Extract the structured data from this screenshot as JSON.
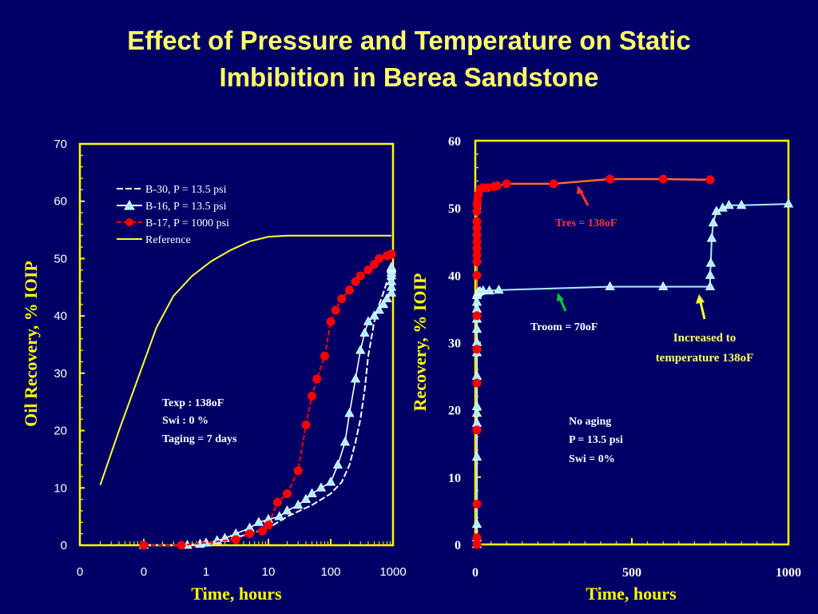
{
  "slide": {
    "title_line1": "Effect of Pressure and Temperature on Static",
    "title_line2": "Imbibition in Berea Sandstone"
  },
  "colors": {
    "background": "#000066",
    "frame": "#ffff00",
    "title": "#ffff66",
    "b30": "#ffffff",
    "b16_fill": "#aaf0ff",
    "b17": "#ff0000",
    "reference": "#ffff33",
    "tres_curve": "#ff6633",
    "troom_curve": "#aaf0ff"
  },
  "chart_data": [
    {
      "type": "line",
      "xscale": "log",
      "xlabel": "Time, hours",
      "ylabel": "Oil Recovery, % IOIP",
      "ylim": [
        0,
        70
      ],
      "yticks": [
        0,
        10,
        20,
        30,
        40,
        50,
        60,
        70
      ],
      "xtick_labels": [
        "0",
        "0",
        "1",
        "10",
        "100",
        "1000"
      ],
      "legend_position": "top-left",
      "series": [
        {
          "name": "B-30, P = 13.5 psi",
          "marker": "dash",
          "x": [
            0.01,
            0.04,
            0.1,
            0.2,
            0.5,
            1,
            2,
            5,
            10,
            15,
            20,
            25,
            30,
            35,
            40,
            50,
            60,
            70,
            80,
            100,
            150,
            200,
            300,
            400,
            500
          ],
          "y": [
            0,
            0,
            0.3,
            0.8,
            2,
            3,
            5,
            7,
            9,
            11,
            14,
            18,
            22,
            27,
            33,
            39,
            42,
            44,
            46,
            47,
            48,
            48.5,
            49,
            49,
            49
          ]
        },
        {
          "name": "B-16, P = 13.5 psi",
          "marker": "triangle",
          "x": [
            0.01,
            0.05,
            0.08,
            0.1,
            0.15,
            0.2,
            0.3,
            0.5,
            0.7,
            1,
            1.5,
            2,
            3,
            4,
            5,
            7,
            10,
            13,
            17,
            20,
            25,
            30,
            35,
            40,
            50,
            60,
            70,
            80,
            100,
            130,
            160,
            200,
            250,
            300,
            400,
            500
          ],
          "y": [
            0,
            0,
            0.2,
            0.4,
            0.8,
            1.2,
            2,
            3,
            4,
            4.5,
            5,
            6,
            7,
            8,
            9,
            10,
            11,
            14,
            18,
            23,
            29,
            34,
            37,
            39,
            40,
            41,
            42,
            43,
            44,
            45,
            46,
            47,
            47.5,
            48,
            48.3,
            48.5
          ]
        },
        {
          "name": "B-17, P = 1000 psi",
          "marker": "circle",
          "x": [
            0.01,
            0.04,
            0.3,
            0.5,
            0.8,
            1,
            1.4,
            2,
            3,
            4,
            5,
            6,
            8,
            10,
            12,
            15,
            20,
            25,
            30,
            40,
            50,
            60,
            80,
            100,
            130,
            170,
            220,
            280,
            350,
            500
          ],
          "y": [
            0,
            0,
            1,
            2,
            2.5,
            3.5,
            7.5,
            9,
            13,
            21,
            26,
            29,
            33,
            39,
            41,
            43,
            44.5,
            46,
            47,
            48,
            49,
            50,
            50.5,
            50.7,
            50.8,
            50.8,
            50.8,
            50.8,
            50.8,
            50.8
          ]
        },
        {
          "name": "Reference",
          "marker": "none",
          "x": [
            0.002,
            0.004,
            0.008,
            0.016,
            0.03,
            0.06,
            0.12,
            0.25,
            0.5,
            1,
            2,
            4,
            8,
            16,
            32,
            64,
            128,
            256,
            500
          ],
          "y": [
            10.5,
            20,
            29,
            38,
            43.5,
            47,
            49.5,
            51.5,
            53,
            53.8,
            54,
            54,
            54,
            54,
            54,
            54,
            54,
            54,
            54
          ]
        }
      ],
      "annotations": [
        "Texp : 138oF",
        "Swi   : 0 %",
        "Taging = 7 days"
      ]
    },
    {
      "type": "scatter",
      "xlabel": "Time, hours",
      "ylabel": "Recovery, % IOIP",
      "xlim": [
        0,
        1000
      ],
      "ylim": [
        0,
        60
      ],
      "xticks": [
        0,
        500,
        1000
      ],
      "yticks": [
        0,
        10,
        20,
        30,
        40,
        50,
        60
      ],
      "series": [
        {
          "marker": "circle",
          "x": [
            0,
            0,
            0,
            0,
            0,
            1,
            1,
            2,
            2,
            2,
            3,
            3,
            3,
            4,
            4,
            5,
            6,
            7,
            10,
            15,
            25,
            40,
            60,
            70,
            100,
            250,
            430,
            600,
            750
          ],
          "y": [
            0,
            1,
            6,
            17,
            24,
            29,
            34,
            40,
            42,
            43,
            44,
            45,
            46,
            47,
            48,
            49.5,
            50.5,
            51,
            52,
            52.8,
            53,
            53,
            53.2,
            53.3,
            53.6,
            53.6,
            54.3,
            54.3,
            54.2
          ]
        },
        {
          "marker": "triangle",
          "x": [
            0,
            0,
            0,
            0,
            1,
            1,
            1,
            1,
            2,
            2,
            2,
            3,
            3,
            4,
            5,
            7,
            10,
            15,
            25,
            45,
            75,
            430,
            600,
            750,
            750,
            752,
            755,
            760,
            770,
            790,
            810,
            850,
            1000
          ],
          "y": [
            0,
            1,
            3,
            13,
            18,
            19.5,
            20.5,
            25,
            28.5,
            30,
            32,
            33.5,
            35,
            36,
            37,
            37.3,
            37.5,
            37.6,
            37.7,
            37.7,
            37.8,
            38.3,
            38.3,
            38.3,
            40,
            41.8,
            45.5,
            47.8,
            49.5,
            50,
            50.4,
            50.4,
            50.6
          ]
        }
      ],
      "annotations": {
        "tres_label": "Tres = 138oF",
        "troom_label": "Troom = 70oF",
        "increased_line1": "Increased to",
        "increased_line2": "temperature 138oF",
        "noaging": "No aging",
        "pressure": "P     = 13.5  psi",
        "swi": "Swi    = 0%"
      }
    }
  ]
}
